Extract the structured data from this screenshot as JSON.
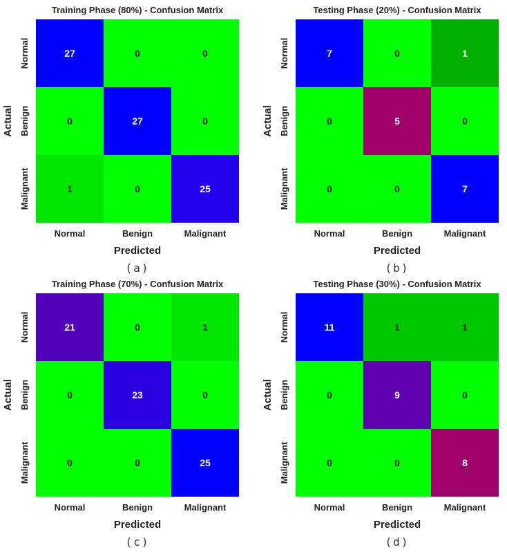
{
  "chart_data": [
    {
      "type": "heatmap",
      "title": "Training Phase (80%) - Confusion Matrix",
      "caption": "(a)",
      "xlabel": "Predicted",
      "ylabel": "Actual",
      "x_categories": [
        "Normal",
        "Benign",
        "Malignant"
      ],
      "y_categories": [
        "Normal",
        "Benign",
        "Malignant"
      ],
      "values": [
        [
          27,
          0,
          0
        ],
        [
          0,
          27,
          0
        ],
        [
          1,
          0,
          25
        ]
      ],
      "colors": [
        [
          "#0000ff",
          "#00ff00",
          "#00ff00"
        ],
        [
          "#00ff00",
          "#0000ff",
          "#00ff00"
        ],
        [
          "#00e600",
          "#00ff00",
          "#2200ee"
        ]
      ],
      "text_colors": [
        [
          "#ffffff",
          "#222222",
          "#222222"
        ],
        [
          "#222222",
          "#ffffff",
          "#222222"
        ],
        [
          "#222222",
          "#222222",
          "#ffffff"
        ]
      ]
    },
    {
      "type": "heatmap",
      "title": "Testing Phase (20%) - Confusion Matrix",
      "caption": "(b)",
      "xlabel": "Predicted",
      "ylabel": "Actual",
      "x_categories": [
        "Normal",
        "Benign",
        "Malignant"
      ],
      "y_categories": [
        "Normal",
        "Benign",
        "Malignant"
      ],
      "values": [
        [
          7,
          0,
          1
        ],
        [
          0,
          5,
          0
        ],
        [
          0,
          0,
          7
        ]
      ],
      "colors": [
        [
          "#0000ff",
          "#00ff00",
          "#00b000"
        ],
        [
          "#00ff00",
          "#a0006a",
          "#00ff00"
        ],
        [
          "#00ff00",
          "#00ff00",
          "#0000ff"
        ]
      ],
      "text_colors": [
        [
          "#ffffff",
          "#222222",
          "#ffffff"
        ],
        [
          "#222222",
          "#ffffff",
          "#222222"
        ],
        [
          "#222222",
          "#222222",
          "#ffffff"
        ]
      ]
    },
    {
      "type": "heatmap",
      "title": "Training Phase (70%) - Confusion Matrix",
      "caption": "(c)",
      "xlabel": "Predicted",
      "ylabel": "Actual",
      "x_categories": [
        "Normal",
        "Benign",
        "Malignant"
      ],
      "y_categories": [
        "Normal",
        "Benign",
        "Malignant"
      ],
      "values": [
        [
          21,
          0,
          1
        ],
        [
          0,
          23,
          0
        ],
        [
          0,
          0,
          25
        ]
      ],
      "colors": [
        [
          "#5000b8",
          "#00ff00",
          "#00e600"
        ],
        [
          "#00ff00",
          "#2a00e0",
          "#00ff00"
        ],
        [
          "#00ff00",
          "#00ff00",
          "#0000ff"
        ]
      ],
      "text_colors": [
        [
          "#ffffff",
          "#222222",
          "#222222"
        ],
        [
          "#222222",
          "#ffffff",
          "#222222"
        ],
        [
          "#222222",
          "#222222",
          "#ffffff"
        ]
      ]
    },
    {
      "type": "heatmap",
      "title": "Testing Phase (30%) - Confusion Matrix",
      "caption": "(d)",
      "xlabel": "Predicted",
      "ylabel": "Actual",
      "x_categories": [
        "Normal",
        "Benign",
        "Malignant"
      ],
      "y_categories": [
        "Normal",
        "Benign",
        "Malignant"
      ],
      "values": [
        [
          11,
          1,
          1
        ],
        [
          0,
          9,
          0
        ],
        [
          0,
          0,
          8
        ]
      ],
      "colors": [
        [
          "#0000ff",
          "#00c800",
          "#00c800"
        ],
        [
          "#00ff00",
          "#6000b0",
          "#00ff00"
        ],
        [
          "#00ff00",
          "#00ff00",
          "#a0006a"
        ]
      ],
      "text_colors": [
        [
          "#ffffff",
          "#222222",
          "#222222"
        ],
        [
          "#222222",
          "#ffffff",
          "#222222"
        ],
        [
          "#222222",
          "#222222",
          "#ffffff"
        ]
      ]
    }
  ]
}
